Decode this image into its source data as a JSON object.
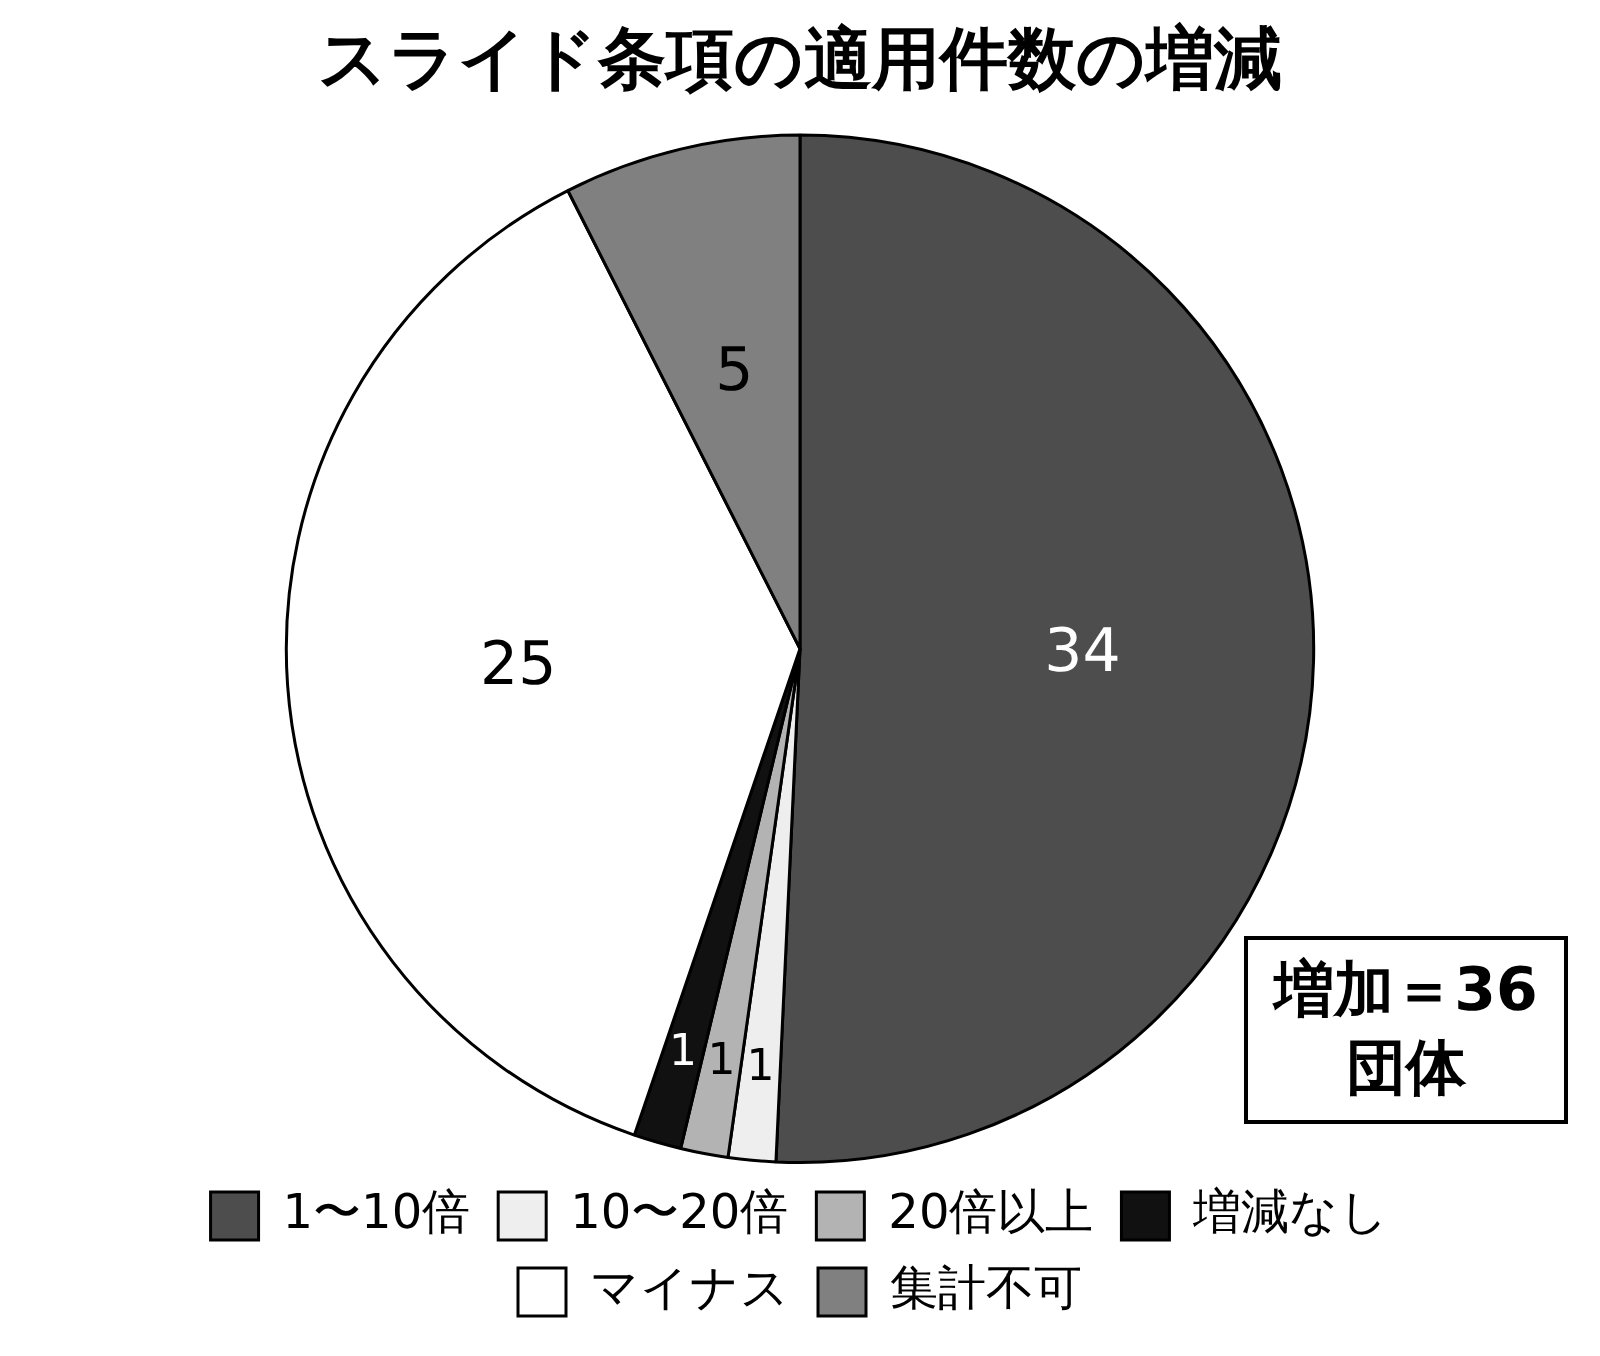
{
  "chart_data": {
    "type": "pie",
    "title": "スライド条項の適用件数の増減",
    "categories": [
      "1〜10倍",
      "10〜20倍",
      "20倍以上",
      "増減なし",
      "マイナス",
      "集計不可"
    ],
    "values": [
      34,
      1,
      1,
      1,
      25,
      5
    ],
    "colors": [
      "#4d4d4d",
      "#eeeeee",
      "#b3b3b3",
      "#111111",
      "#ffffff",
      "#808080"
    ],
    "data_labels": true,
    "legend": "bottom",
    "annotations": [
      "増加＝36団体"
    ]
  }
}
